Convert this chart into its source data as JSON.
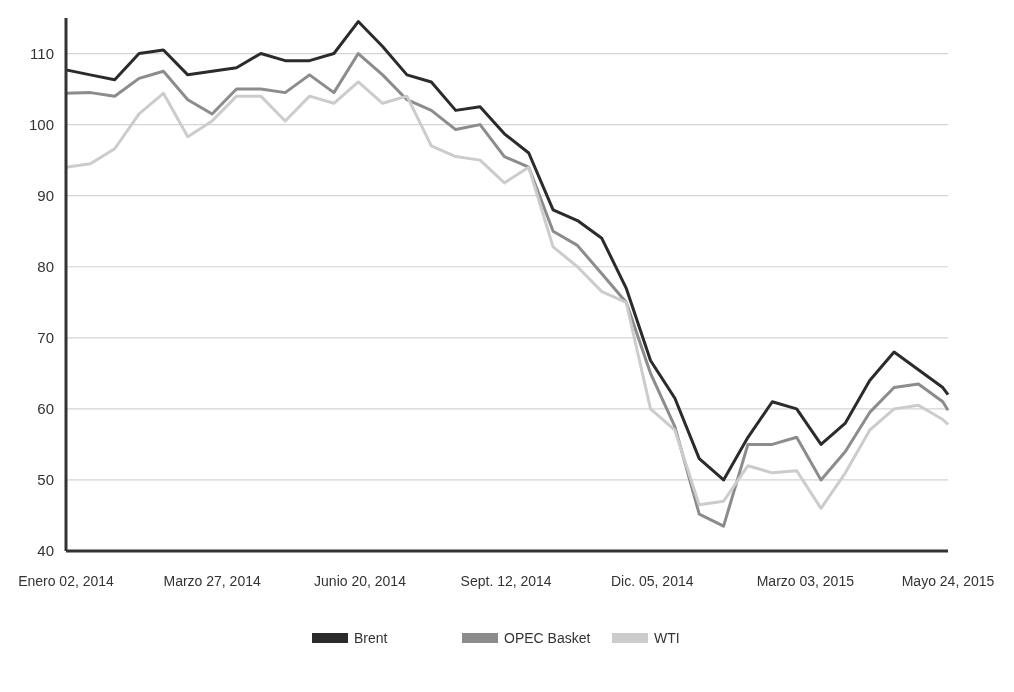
{
  "chart_data": {
    "type": "line",
    "x": [
      "2014-01-02",
      "2014-01-16",
      "2014-01-30",
      "2014-02-13",
      "2014-02-27",
      "2014-03-13",
      "2014-03-27",
      "2014-04-10",
      "2014-04-24",
      "2014-05-08",
      "2014-05-22",
      "2014-06-05",
      "2014-06-19",
      "2014-07-03",
      "2014-07-17",
      "2014-07-31",
      "2014-08-14",
      "2014-08-28",
      "2014-09-11",
      "2014-09-25",
      "2014-10-09",
      "2014-10-23",
      "2014-11-06",
      "2014-11-20",
      "2014-12-04",
      "2014-12-18",
      "2015-01-01",
      "2015-01-15",
      "2015-01-29",
      "2015-02-12",
      "2015-02-26",
      "2015-03-12",
      "2015-03-26",
      "2015-04-09",
      "2015-04-23",
      "2015-05-07",
      "2015-05-21",
      "2015-05-24"
    ],
    "series": [
      {
        "name": "Brent",
        "color": "#2b2b2b",
        "values": [
          107.7,
          107,
          106.3,
          110,
          110.5,
          107,
          107.5,
          108,
          110,
          109,
          109,
          110,
          114.5,
          111,
          107,
          106,
          102,
          102.5,
          98.7,
          96,
          88,
          86.5,
          84,
          77,
          66.8,
          61.5,
          53,
          50,
          56,
          61,
          60,
          55,
          58,
          64,
          68,
          65.5,
          63,
          62
        ]
      },
      {
        "name": "OPEC Basket",
        "color": "#8c8c8c",
        "values": [
          104.4,
          104.5,
          104,
          106.5,
          107.5,
          103.5,
          101.5,
          105,
          105,
          104.5,
          107,
          104.5,
          110,
          107,
          103.5,
          102,
          99.3,
          100,
          95.5,
          94,
          85,
          83,
          79,
          75,
          65,
          57.5,
          45.2,
          43.5,
          55,
          55,
          56,
          50,
          54,
          59.5,
          63,
          63.5,
          61,
          59.8
        ]
      },
      {
        "name": "WTI",
        "color": "#cccccc",
        "values": [
          94,
          94.5,
          96.6,
          101.5,
          104.4,
          98.3,
          100.5,
          104,
          104,
          100.5,
          104,
          103,
          106,
          103,
          104,
          97,
          95.5,
          95,
          91.8,
          94,
          82.8,
          80,
          76.5,
          75,
          60,
          57,
          46.5,
          47,
          52,
          51,
          51.3,
          46,
          51,
          57,
          60,
          60.5,
          58.5,
          57.8
        ]
      }
    ],
    "xlim": [
      "2014-01-02",
      "2015-05-24"
    ],
    "xticks": [
      {
        "value": "2014-01-02",
        "label": "Enero 02, 2014"
      },
      {
        "value": "2014-03-27",
        "label": "Marzo 27, 2014"
      },
      {
        "value": "2014-06-20",
        "label": "Junio 20, 2014"
      },
      {
        "value": "2014-09-12",
        "label": "Sept. 12, 2014"
      },
      {
        "value": "2014-12-05",
        "label": "Dic. 05, 2014"
      },
      {
        "value": "2015-03-03",
        "label": "Marzo 03, 2015"
      },
      {
        "value": "2015-05-24",
        "label": "Mayo 24, 2015"
      }
    ],
    "ylim": [
      40,
      115
    ],
    "yticks": [
      40,
      50,
      60,
      70,
      80,
      90,
      100,
      110
    ],
    "grid": "y",
    "legend": "bottom",
    "line_style": "solid",
    "marker": "none"
  }
}
